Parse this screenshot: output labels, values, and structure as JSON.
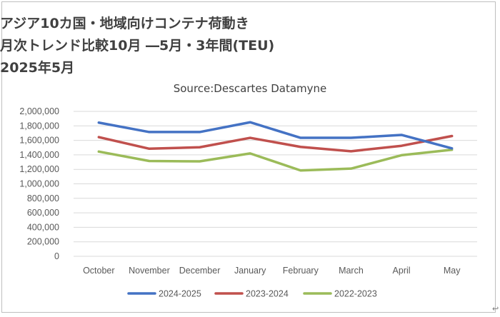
{
  "chart_data": {
    "type": "line",
    "title": "アジア10カ国・地域向けコンテナ荷動き",
    "title_line2": "月次トレンド比較10月 ―5月・3年間(TEU)",
    "title_line3": "2025年5月",
    "subtitle": "Source:Descartes Datamyne",
    "categories": [
      "October",
      "November",
      "December",
      "January",
      "February",
      "March",
      "April",
      "May"
    ],
    "ylim": [
      0,
      2000000
    ],
    "yticks": [
      "0",
      "200,000",
      "400,000",
      "600,000",
      "800,000",
      "1,000,000",
      "1,200,000",
      "1,400,000",
      "1,600,000",
      "1,800,000",
      "2,000,000"
    ],
    "grid": true,
    "legend_position": "bottom",
    "series": [
      {
        "name": "2024-2025",
        "color": "#4472C4",
        "values": [
          1845000,
          1715000,
          1715000,
          1850000,
          1635000,
          1635000,
          1675000,
          1490000
        ]
      },
      {
        "name": "2023-2024",
        "color": "#C0504D",
        "values": [
          1645000,
          1485000,
          1505000,
          1635000,
          1510000,
          1450000,
          1525000,
          1660000
        ]
      },
      {
        "name": "2022-2023",
        "color": "#9BBB59",
        "values": [
          1445000,
          1315000,
          1310000,
          1420000,
          1185000,
          1210000,
          1395000,
          1470000
        ]
      }
    ]
  },
  "ui": {
    "corner_glyph": "↩"
  }
}
